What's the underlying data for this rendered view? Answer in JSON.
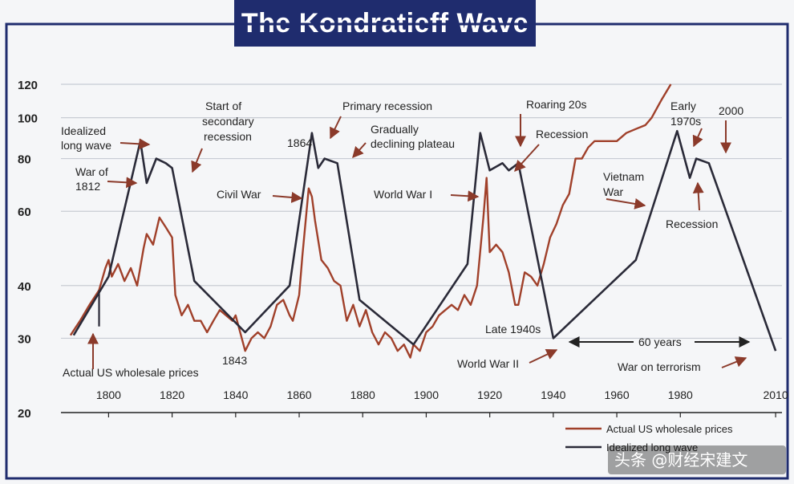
{
  "title": "The Kondratieff Wave",
  "chart_data": {
    "type": "line",
    "title": "The Kondratieff Wave",
    "xlim": [
      1785,
      2012
    ],
    "ylim": [
      20,
      120
    ],
    "y_ticks": [
      20,
      30,
      40,
      60,
      80,
      100,
      120
    ],
    "x_ticks": [
      1800,
      1820,
      1840,
      1860,
      1880,
      1900,
      1920,
      1940,
      1960,
      1980,
      2010
    ],
    "grid": "horizontal",
    "series": [
      {
        "name": "Actual US wholesale prices",
        "color": "#a0402a",
        "x": [
          1788,
          1791,
          1794,
          1797,
          1799,
          1800,
          1801,
          1803,
          1805,
          1807,
          1809,
          1811,
          1812,
          1814,
          1816,
          1818,
          1820,
          1821,
          1823,
          1825,
          1827,
          1829,
          1831,
          1833,
          1835,
          1837,
          1839,
          1840,
          1843,
          1845,
          1847,
          1849,
          1851,
          1853,
          1855,
          1857,
          1858,
          1860,
          1861,
          1863,
          1864,
          1865,
          1867,
          1869,
          1871,
          1873,
          1875,
          1877,
          1879,
          1881,
          1883,
          1885,
          1887,
          1889,
          1891,
          1893,
          1895,
          1896,
          1898,
          1900,
          1902,
          1904,
          1906,
          1908,
          1910,
          1912,
          1914,
          1916,
          1918,
          1919,
          1920,
          1922,
          1924,
          1926,
          1928,
          1929,
          1931,
          1933,
          1935,
          1937,
          1939,
          1941,
          1943,
          1945,
          1947,
          1949,
          1951,
          1953,
          1955,
          1960,
          1963,
          1966,
          1969,
          1971,
          1974,
          1977
        ],
        "values": [
          30.5,
          33,
          36,
          39,
          44,
          46,
          42,
          45,
          41,
          44,
          40,
          49,
          53,
          50,
          58,
          55,
          52,
          38,
          34,
          36,
          33,
          33,
          31,
          33,
          35,
          34,
          33,
          34,
          28,
          30,
          31,
          30,
          32,
          36,
          37,
          34,
          33,
          38,
          47,
          68,
          65,
          57,
          46,
          44,
          41,
          40,
          33,
          36,
          32,
          35,
          31,
          29,
          31,
          30,
          28,
          29,
          27,
          29,
          28,
          31,
          32,
          34,
          35,
          36,
          35,
          38,
          36,
          40,
          58,
          72,
          48,
          50,
          48,
          43,
          36,
          36,
          43,
          42,
          40,
          45,
          52,
          56,
          62,
          66,
          80,
          80,
          85,
          88,
          88,
          88,
          92,
          94,
          96,
          100,
          110,
          120
        ]
      },
      {
        "name": "Idealized long wave",
        "color": "#2a2a38",
        "x": [
          1789,
          1800,
          1810,
          1812,
          1815,
          1818,
          1820,
          1827,
          1843,
          1857,
          1864,
          1866,
          1868,
          1872,
          1879,
          1896,
          1913,
          1917,
          1920,
          1924,
          1926,
          1929,
          1940,
          1966,
          1979,
          1983,
          1985,
          1989,
          2010
        ],
        "values": [
          30.5,
          42,
          88,
          70,
          80,
          78,
          76,
          41,
          31,
          40,
          92,
          76,
          80,
          78,
          37,
          29,
          45,
          92,
          75,
          78,
          75,
          78,
          30,
          46,
          93,
          72,
          80,
          78,
          28
        ]
      }
    ],
    "annotations": [
      "Idealized long wave",
      "War of 1812",
      "Start of secondary recession",
      "Civil War",
      "1843",
      "1864",
      "Primary recession",
      "Gradually declining plateau",
      "World War I",
      "Roaring 20s",
      "Recession",
      "Late 1940s",
      "World War II",
      "Vietnam War",
      "Early 1970s",
      "2000",
      "Recession",
      "60 years",
      "War on terrorism",
      "Actual US wholesale prices"
    ]
  },
  "labels": {
    "idealized": [
      "Idealized",
      "long wave"
    ],
    "war1812": [
      "War of",
      "1812"
    ],
    "start_secondary": [
      "Start of",
      "secondary",
      "recession"
    ],
    "civil_war": "Civil War",
    "y1843": "1843",
    "y1864": "1864",
    "primary_recession": "Primary recession",
    "gradually": [
      "Gradually",
      "declining plateau"
    ],
    "ww1": "World War I",
    "roaring": "Roaring 20s",
    "recession1": "Recession",
    "late1940s": "Late 1940s",
    "ww2": "World War II",
    "vietnam": [
      "Vietnam",
      "War"
    ],
    "early1970s": [
      "Early",
      "1970s"
    ],
    "y2000": "2000",
    "recession2": "Recession",
    "sixty_years": "60 years",
    "terror": "War on terrorism",
    "actual_prices": "Actual US wholesale prices"
  },
  "legend": {
    "actual": "Actual US wholesale prices",
    "idealized": "Idealized long wave"
  },
  "watermark": "头条 @财经宋建文"
}
